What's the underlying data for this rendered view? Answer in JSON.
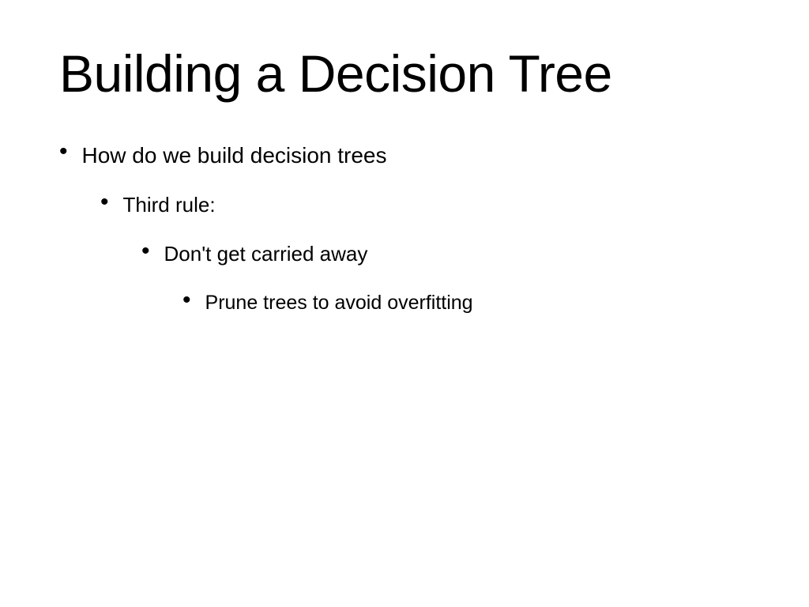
{
  "slide": {
    "title": "Building a Decision Tree",
    "background_color": "#ffffff",
    "text_color": "#000000",
    "title_fontsize": 66,
    "bullets": {
      "level1": {
        "text": "How do we build decision trees",
        "fontsize": 28
      },
      "level2": {
        "text": "Third rule:",
        "fontsize": 26
      },
      "level3": {
        "text": "Don't get carried away",
        "fontsize": 26
      },
      "level4": {
        "text": "Prune trees to avoid overfitting",
        "fontsize": 25
      }
    },
    "bullet_marker": "•"
  }
}
